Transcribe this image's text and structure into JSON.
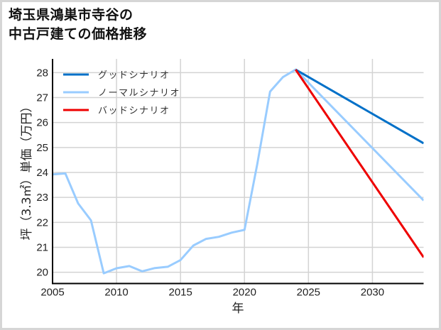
{
  "title": {
    "line1": "埼玉県鴻巣市寺谷の",
    "line2": "中古戸建ての価格推移"
  },
  "colors": {
    "good": "#0070c8",
    "normal": "#99ccff",
    "bad": "#ee0000",
    "grid": "#d3d3d3",
    "axis": "#000000",
    "frame": "#d6d6d6"
  },
  "chart_data": {
    "type": "line",
    "title": "埼玉県鴻巣市寺谷の中古戸建ての価格推移",
    "xlabel": "年",
    "ylabel": "坪（3.3㎡）単価（万円）",
    "xlim": [
      2005,
      2034
    ],
    "ylim": [
      19.55,
      28.55
    ],
    "xticks": [
      2005,
      2010,
      2015,
      2020,
      2025,
      2030
    ],
    "yticks": [
      20,
      21,
      22,
      23,
      24,
      25,
      26,
      27,
      28
    ],
    "grid": true,
    "legend_position": "upper left",
    "series": [
      {
        "name": "グッドシナリオ",
        "color": "#0070c8",
        "x": [
          2024,
          2034
        ],
        "y": [
          28.12,
          25.17
        ]
      },
      {
        "name": "ノーマルシナリオ",
        "color": "#99ccff",
        "x": [
          2005,
          2006,
          2007,
          2008,
          2009,
          2010,
          2011,
          2012,
          2013,
          2014,
          2015,
          2016,
          2017,
          2018,
          2019,
          2020,
          2021,
          2022,
          2023,
          2024,
          2034
        ],
        "y": [
          23.92,
          23.96,
          22.76,
          22.08,
          19.96,
          20.16,
          20.25,
          20.04,
          20.17,
          20.22,
          20.49,
          21.07,
          21.34,
          21.42,
          21.59,
          21.7,
          24.34,
          27.24,
          27.82,
          28.12,
          22.88
        ]
      },
      {
        "name": "バッドシナリオ",
        "color": "#ee0000",
        "x": [
          2024,
          2034
        ],
        "y": [
          28.12,
          20.6
        ]
      }
    ]
  }
}
